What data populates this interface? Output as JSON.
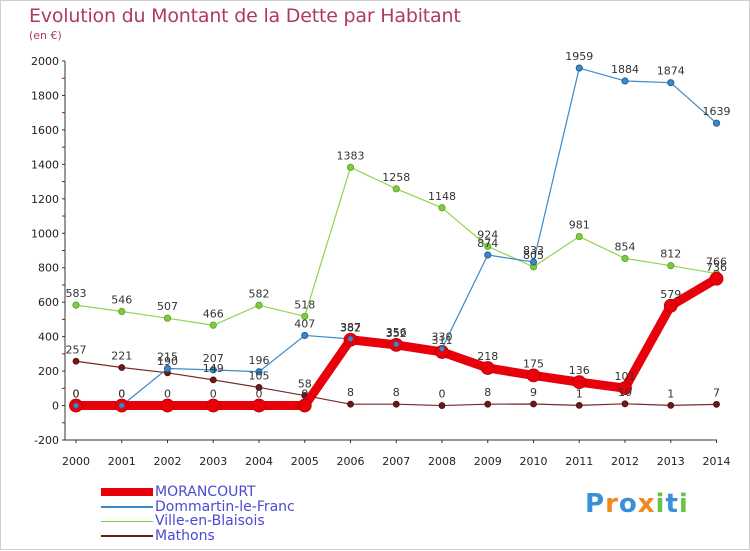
{
  "header": {
    "title": "Evolution du Montant de la Dette par Habitant",
    "subtitle": "(en €)"
  },
  "logo": {
    "letters": [
      "P",
      "r",
      "o",
      "x",
      "i",
      "t",
      "i"
    ],
    "colors": [
      "#3a8fd8",
      "#f08a1e",
      "#3a8fd8",
      "#f08a1e",
      "#6cc24a",
      "#3a8fd8",
      "#6cc24a"
    ]
  },
  "chart_data": {
    "type": "line",
    "title": "Evolution du Montant de la Dette par Habitant",
    "subtitle": "(en €)",
    "xlabel": "",
    "ylabel": "",
    "x": [
      "2000",
      "2001",
      "2002",
      "2003",
      "2004",
      "2005",
      "2006",
      "2007",
      "2008",
      "2009",
      "2010",
      "2011",
      "2012",
      "2013",
      "2014"
    ],
    "ylim": [
      -200,
      2000
    ],
    "yticks": [
      -200,
      0,
      200,
      400,
      600,
      800,
      1000,
      1200,
      1400,
      1600,
      1800,
      2000
    ],
    "grid": false,
    "legend_position": "bottom-left",
    "series": [
      {
        "name": "MORANCOURT",
        "color": "#e8000b",
        "values": [
          0,
          0,
          0,
          0,
          0,
          0,
          382,
          352,
          311,
          218,
          175,
          136,
          101,
          579,
          736
        ]
      },
      {
        "name": "Dommartin-le-Franc",
        "color": "#3d8ac8",
        "values": [
          0,
          0,
          215,
          207,
          196,
          407,
          387,
          356,
          330,
          874,
          833,
          1959,
          1884,
          1874,
          1639
        ]
      },
      {
        "name": "Ville-en-Blaisois",
        "color": "#7ccc3c",
        "values": [
          583,
          546,
          507,
          466,
          582,
          518,
          1383,
          1258,
          1148,
          924,
          805,
          981,
          854,
          812,
          766
        ]
      },
      {
        "name": "Mathons",
        "color": "#6b1a1a",
        "values": [
          257,
          221,
          190,
          149,
          105,
          58,
          8,
          8,
          0,
          8,
          9,
          1,
          10,
          1,
          7
        ]
      }
    ]
  }
}
